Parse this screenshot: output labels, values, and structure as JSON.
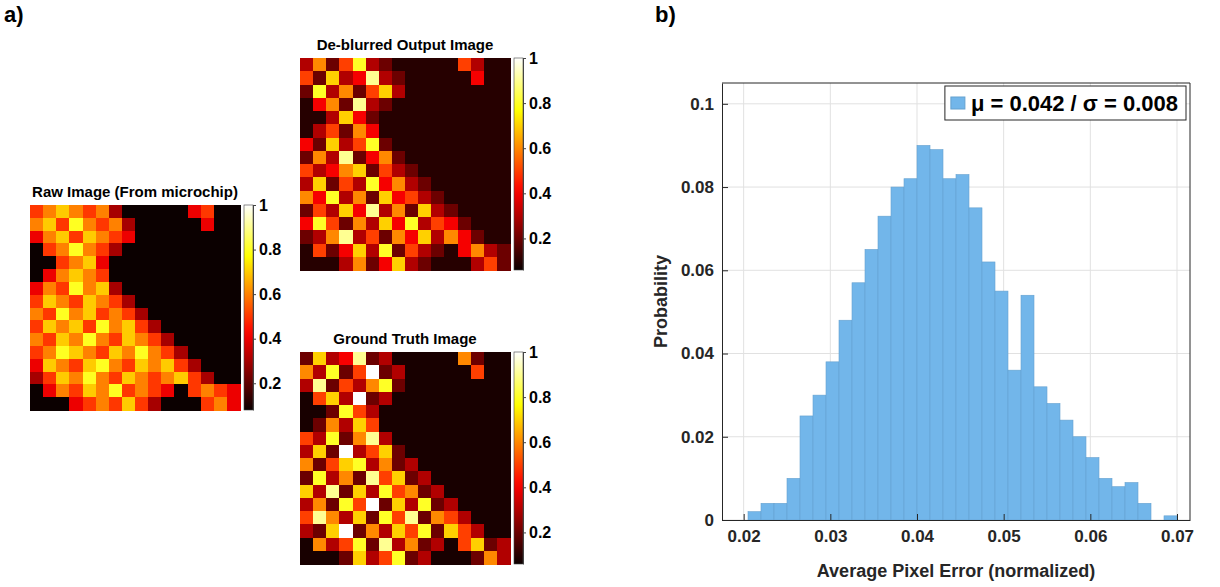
{
  "chart_data": [
    {
      "type": "heatmap",
      "panel_label": "a)",
      "title": "Raw Image (From microchip)",
      "tick_labels": false,
      "colorbar": {
        "range": [
          0.08,
          1
        ],
        "ticks": [
          0.2,
          0.4,
          0.6,
          0.8,
          1
        ]
      },
      "cells": [
        [
          0.5,
          0.6,
          0.7,
          0.6,
          0.5,
          0.6,
          0.3,
          0.08,
          0.08,
          0.08,
          0.08,
          0.08,
          0.4,
          0.5,
          0.08,
          0.08
        ],
        [
          0.6,
          0.7,
          0.5,
          0.8,
          0.6,
          0.5,
          0.6,
          0.3,
          0.08,
          0.08,
          0.08,
          0.08,
          0.08,
          0.4,
          0.08,
          0.08
        ],
        [
          0.4,
          0.6,
          0.7,
          0.5,
          0.7,
          0.6,
          0.5,
          0.4,
          0.08,
          0.08,
          0.08,
          0.08,
          0.08,
          0.08,
          0.08,
          0.08
        ],
        [
          0.08,
          0.5,
          0.6,
          0.8,
          0.6,
          0.5,
          0.3,
          0.08,
          0.08,
          0.08,
          0.08,
          0.08,
          0.08,
          0.08,
          0.08,
          0.08
        ],
        [
          0.08,
          0.08,
          0.5,
          0.6,
          0.7,
          0.4,
          0.08,
          0.08,
          0.08,
          0.08,
          0.08,
          0.08,
          0.08,
          0.08,
          0.08,
          0.08
        ],
        [
          0.08,
          0.4,
          0.6,
          0.7,
          0.6,
          0.5,
          0.08,
          0.08,
          0.08,
          0.08,
          0.08,
          0.08,
          0.08,
          0.08,
          0.08,
          0.08
        ],
        [
          0.4,
          0.6,
          0.5,
          0.8,
          0.6,
          0.7,
          0.3,
          0.08,
          0.08,
          0.08,
          0.08,
          0.08,
          0.08,
          0.08,
          0.08,
          0.08
        ],
        [
          0.5,
          0.7,
          0.6,
          0.5,
          0.7,
          0.6,
          0.5,
          0.3,
          0.08,
          0.08,
          0.08,
          0.08,
          0.08,
          0.08,
          0.08,
          0.08
        ],
        [
          0.6,
          0.5,
          0.8,
          0.6,
          0.7,
          0.5,
          0.6,
          0.5,
          0.3,
          0.08,
          0.08,
          0.08,
          0.08,
          0.08,
          0.08,
          0.08
        ],
        [
          0.5,
          0.7,
          0.6,
          0.7,
          0.5,
          0.8,
          0.6,
          0.7,
          0.5,
          0.3,
          0.08,
          0.08,
          0.08,
          0.08,
          0.08,
          0.08
        ],
        [
          0.6,
          0.5,
          0.7,
          0.6,
          0.8,
          0.6,
          0.5,
          0.7,
          0.6,
          0.5,
          0.3,
          0.08,
          0.08,
          0.08,
          0.08,
          0.08
        ],
        [
          0.5,
          0.6,
          0.8,
          0.7,
          0.6,
          0.5,
          0.7,
          0.6,
          0.8,
          0.6,
          0.5,
          0.3,
          0.08,
          0.08,
          0.08,
          0.08
        ],
        [
          0.4,
          0.7,
          0.6,
          0.5,
          0.7,
          0.8,
          0.6,
          0.5,
          0.7,
          0.6,
          0.7,
          0.5,
          0.3,
          0.08,
          0.08,
          0.08
        ],
        [
          0.3,
          0.5,
          0.7,
          0.6,
          0.8,
          0.6,
          0.5,
          0.7,
          0.6,
          0.5,
          0.6,
          0.7,
          0.5,
          0.3,
          0.08,
          0.08
        ],
        [
          0.08,
          0.4,
          0.6,
          0.5,
          0.7,
          0.6,
          0.8,
          0.5,
          0.6,
          0.5,
          0.4,
          0.08,
          0.5,
          0.6,
          0.5,
          0.4
        ],
        [
          0.08,
          0.08,
          0.08,
          0.4,
          0.5,
          0.6,
          0.5,
          0.7,
          0.5,
          0.3,
          0.08,
          0.08,
          0.08,
          0.5,
          0.6,
          0.4
        ]
      ]
    },
    {
      "type": "heatmap",
      "title": "De-blurred Output Image",
      "tick_labels": false,
      "colorbar": {
        "range": [
          0.06,
          1
        ],
        "ticks": [
          0.2,
          0.4,
          0.6,
          0.8,
          1
        ]
      },
      "cells": [
        [
          0.3,
          0.6,
          0.2,
          0.5,
          0.8,
          0.3,
          0.2,
          0.1,
          0.1,
          0.1,
          0.1,
          0.1,
          0.5,
          0.3,
          0.1,
          0.1
        ],
        [
          0.5,
          0.2,
          0.7,
          0.3,
          0.4,
          0.9,
          0.3,
          0.2,
          0.1,
          0.1,
          0.1,
          0.1,
          0.1,
          0.4,
          0.1,
          0.1
        ],
        [
          0.2,
          0.8,
          0.3,
          0.6,
          0.2,
          0.5,
          0.7,
          0.3,
          0.1,
          0.1,
          0.1,
          0.1,
          0.1,
          0.1,
          0.1,
          0.1
        ],
        [
          0.1,
          0.4,
          0.6,
          0.2,
          0.9,
          0.3,
          0.2,
          0.1,
          0.1,
          0.1,
          0.1,
          0.1,
          0.1,
          0.1,
          0.1,
          0.1
        ],
        [
          0.1,
          0.1,
          0.3,
          0.7,
          0.4,
          0.2,
          0.1,
          0.1,
          0.1,
          0.1,
          0.1,
          0.1,
          0.1,
          0.1,
          0.1,
          0.1
        ],
        [
          0.1,
          0.3,
          0.5,
          0.2,
          0.6,
          0.4,
          0.1,
          0.1,
          0.1,
          0.1,
          0.1,
          0.1,
          0.1,
          0.1,
          0.1,
          0.1
        ],
        [
          0.4,
          0.2,
          0.7,
          0.3,
          0.5,
          0.8,
          0.2,
          0.1,
          0.1,
          0.1,
          0.1,
          0.1,
          0.1,
          0.1,
          0.1,
          0.1
        ],
        [
          0.2,
          0.6,
          0.3,
          0.9,
          0.2,
          0.4,
          0.6,
          0.2,
          0.1,
          0.1,
          0.1,
          0.1,
          0.1,
          0.1,
          0.1,
          0.1
        ],
        [
          0.5,
          0.3,
          0.4,
          0.6,
          0.7,
          0.2,
          0.5,
          0.3,
          0.2,
          0.1,
          0.1,
          0.1,
          0.1,
          0.1,
          0.1,
          0.1
        ],
        [
          0.3,
          0.7,
          0.2,
          0.5,
          0.3,
          0.8,
          0.4,
          0.6,
          0.3,
          0.2,
          0.1,
          0.1,
          0.1,
          0.1,
          0.1,
          0.1
        ],
        [
          0.6,
          0.4,
          0.8,
          0.3,
          0.6,
          0.2,
          0.7,
          0.4,
          0.5,
          0.3,
          0.2,
          0.1,
          0.1,
          0.1,
          0.1,
          0.1
        ],
        [
          0.2,
          0.5,
          0.3,
          0.7,
          0.4,
          0.9,
          0.3,
          0.6,
          0.2,
          0.7,
          0.3,
          0.2,
          0.1,
          0.1,
          0.1,
          0.1
        ],
        [
          0.4,
          0.8,
          0.5,
          0.2,
          0.6,
          0.3,
          0.7,
          0.4,
          0.8,
          0.3,
          0.5,
          0.4,
          0.2,
          0.1,
          0.1,
          0.1
        ],
        [
          0.2,
          0.3,
          0.6,
          0.9,
          0.3,
          0.5,
          0.2,
          0.6,
          0.4,
          0.7,
          0.3,
          0.6,
          0.4,
          0.2,
          0.1,
          0.1
        ],
        [
          0.1,
          0.5,
          0.2,
          0.4,
          0.7,
          0.3,
          0.8,
          0.2,
          0.5,
          0.3,
          0.2,
          0.1,
          0.4,
          0.6,
          0.3,
          0.2
        ],
        [
          0.1,
          0.1,
          0.1,
          0.3,
          0.6,
          0.2,
          0.4,
          0.7,
          0.3,
          0.2,
          0.1,
          0.1,
          0.1,
          0.3,
          0.5,
          0.2
        ]
      ]
    },
    {
      "type": "heatmap",
      "title": "Ground Truth Image",
      "tick_labels": false,
      "colorbar": {
        "range": [
          0.06,
          1
        ],
        "ticks": [
          0.2,
          0.4,
          0.6,
          0.8,
          1
        ]
      },
      "cells": [
        [
          0.2,
          0.7,
          0.3,
          0.4,
          0.9,
          0.2,
          0.3,
          0.08,
          0.08,
          0.08,
          0.08,
          0.08,
          0.6,
          0.2,
          0.08,
          0.08
        ],
        [
          0.6,
          0.3,
          0.8,
          0.2,
          0.5,
          1,
          0.2,
          0.3,
          0.08,
          0.08,
          0.08,
          0.08,
          0.08,
          0.5,
          0.08,
          0.08
        ],
        [
          0.3,
          0.9,
          0.2,
          0.5,
          0.3,
          0.6,
          0.8,
          0.2,
          0.08,
          0.08,
          0.08,
          0.08,
          0.08,
          0.08,
          0.08,
          0.08
        ],
        [
          0.08,
          0.5,
          0.7,
          0.3,
          1,
          0.2,
          0.3,
          0.08,
          0.08,
          0.08,
          0.08,
          0.08,
          0.08,
          0.08,
          0.08,
          0.08
        ],
        [
          0.08,
          0.08,
          0.2,
          0.8,
          0.5,
          0.3,
          0.08,
          0.08,
          0.08,
          0.08,
          0.08,
          0.08,
          0.08,
          0.08,
          0.08,
          0.08
        ],
        [
          0.08,
          0.2,
          0.6,
          0.3,
          0.7,
          0.5,
          0.08,
          0.08,
          0.08,
          0.08,
          0.08,
          0.08,
          0.08,
          0.08,
          0.08,
          0.08
        ],
        [
          0.5,
          0.3,
          0.8,
          0.2,
          0.6,
          0.9,
          0.3,
          0.08,
          0.08,
          0.08,
          0.08,
          0.08,
          0.08,
          0.08,
          0.08,
          0.08
        ],
        [
          0.3,
          0.7,
          0.2,
          1,
          0.3,
          0.5,
          0.7,
          0.2,
          0.08,
          0.08,
          0.08,
          0.08,
          0.08,
          0.08,
          0.08,
          0.08
        ],
        [
          0.6,
          0.2,
          0.5,
          0.7,
          0.8,
          0.3,
          0.6,
          0.2,
          0.3,
          0.08,
          0.08,
          0.08,
          0.08,
          0.08,
          0.08,
          0.08
        ],
        [
          0.2,
          0.8,
          0.3,
          0.6,
          0.2,
          0.9,
          0.5,
          0.7,
          0.2,
          0.3,
          0.08,
          0.08,
          0.08,
          0.08,
          0.08,
          0.08
        ],
        [
          0.7,
          0.3,
          0.9,
          0.2,
          0.7,
          0.3,
          0.8,
          0.5,
          0.6,
          0.2,
          0.3,
          0.08,
          0.08,
          0.08,
          0.08,
          0.08
        ],
        [
          0.3,
          0.6,
          0.2,
          0.8,
          0.5,
          1,
          0.2,
          0.7,
          0.3,
          0.8,
          0.2,
          0.3,
          0.08,
          0.08,
          0.08,
          0.08
        ],
        [
          0.5,
          0.9,
          0.6,
          0.3,
          0.7,
          0.2,
          0.8,
          0.5,
          0.9,
          0.2,
          0.6,
          0.5,
          0.3,
          0.08,
          0.08,
          0.08
        ],
        [
          0.3,
          0.2,
          0.7,
          1,
          0.2,
          0.6,
          0.3,
          0.7,
          0.5,
          0.8,
          0.2,
          0.7,
          0.5,
          0.3,
          0.08,
          0.08
        ],
        [
          0.08,
          0.6,
          0.3,
          0.5,
          0.8,
          0.2,
          0.9,
          0.3,
          0.6,
          0.2,
          0.3,
          0.08,
          0.5,
          0.7,
          0.2,
          0.3
        ],
        [
          0.08,
          0.08,
          0.08,
          0.2,
          0.7,
          0.3,
          0.5,
          0.8,
          0.2,
          0.3,
          0.08,
          0.08,
          0.08,
          0.2,
          0.6,
          0.3
        ]
      ]
    },
    {
      "type": "histogram",
      "panel_label": "b)",
      "x_label": "Average Pixel Error (normalized)",
      "y_label": "Probability",
      "xlim": [
        0.0175,
        0.0715
      ],
      "xticks": [
        0.02,
        0.03,
        0.04,
        0.05,
        0.06,
        0.07
      ],
      "ylim": [
        0,
        0.105
      ],
      "yticks": [
        0,
        0.02,
        0.04,
        0.06,
        0.08,
        0.1
      ],
      "grid": true,
      "legend": "northeast",
      "bins": [
        0.0205,
        0.022,
        0.0235,
        0.025,
        0.0265,
        0.028,
        0.0295,
        0.031,
        0.0325,
        0.034,
        0.0355,
        0.037,
        0.0385,
        0.04,
        0.0415,
        0.043,
        0.0445,
        0.046,
        0.0475,
        0.049,
        0.0505,
        0.052,
        0.0535,
        0.055,
        0.0565,
        0.058,
        0.0595,
        0.061,
        0.0625,
        0.064,
        0.0655,
        0.067,
        0.0685,
        0.07
      ],
      "series": [
        {
          "name": "μ = 0.042 / σ = 0.008",
          "color": "#72b6ea",
          "values": [
            0.002,
            0.004,
            0.004,
            0.01,
            0.025,
            0.03,
            0.038,
            0.048,
            0.057,
            0.065,
            0.073,
            0.08,
            0.082,
            0.09,
            0.089,
            0.082,
            0.083,
            0.075,
            0.062,
            0.055,
            0.036,
            0.054,
            0.032,
            0.028,
            0.024,
            0.02,
            0.015,
            0.01,
            0.008,
            0.009,
            0.004,
            0.0,
            0.001
          ]
        }
      ]
    }
  ]
}
